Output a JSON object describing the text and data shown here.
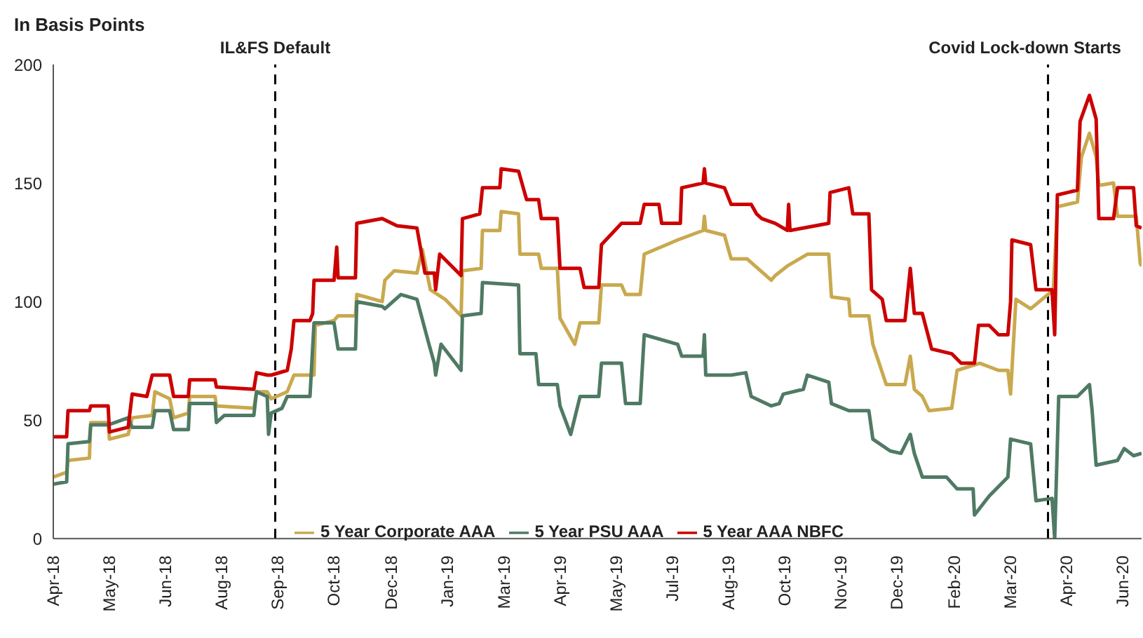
{
  "chart_data": {
    "type": "line",
    "ylabel": "In Basis Points",
    "xlim": [
      "2018-04-02",
      "2020-06-24"
    ],
    "ylim": [
      0,
      200
    ],
    "yticks": [
      0,
      50,
      100,
      150,
      200
    ],
    "xticks": [
      {
        "value": "2018-04-02",
        "label": "Apr-18"
      },
      {
        "value": "2018-05-14",
        "label": "May-18"
      },
      {
        "value": "2018-06-25",
        "label": "Jun-18"
      },
      {
        "value": "2018-08-06",
        "label": "Aug-18"
      },
      {
        "value": "2018-09-17",
        "label": "Sep-18"
      },
      {
        "value": "2018-10-29",
        "label": "Oct-18"
      },
      {
        "value": "2018-12-11",
        "label": "Dec-18"
      },
      {
        "value": "2019-01-22",
        "label": "Jan-19"
      },
      {
        "value": "2019-03-05",
        "label": "Mar-19"
      },
      {
        "value": "2019-04-16",
        "label": "Apr-19"
      },
      {
        "value": "2019-05-28",
        "label": "May-19"
      },
      {
        "value": "2019-07-09",
        "label": "Jul-19"
      },
      {
        "value": "2019-08-20",
        "label": "Aug-19"
      },
      {
        "value": "2019-10-01",
        "label": "Oct-19"
      },
      {
        "value": "2019-11-12",
        "label": "Nov-19"
      },
      {
        "value": "2019-12-24",
        "label": "Dec-19"
      },
      {
        "value": "2020-02-05",
        "label": "Feb-20"
      },
      {
        "value": "2020-03-18",
        "label": "Mar-20"
      },
      {
        "value": "2020-04-29",
        "label": "Apr-20"
      },
      {
        "value": "2020-06-10",
        "label": "Jun-20"
      }
    ],
    "legend": "bottom",
    "line_style": "solid",
    "ref_lines": [
      {
        "axis": "x",
        "value": "2018-09-15",
        "label": "IL&FS Default",
        "color": "#000000",
        "line_style": "dashed"
      },
      {
        "axis": "x",
        "value": "2020-04-15",
        "label": "Covid Lock-down Starts",
        "color": "#000000",
        "line_style": "dashed"
      }
    ],
    "series": [
      {
        "name": "5 Year Corporate AAA",
        "color": "#c9a94f",
        "x": [
          "2018-04-02",
          "2018-04-12",
          "2018-04-13",
          "2018-04-29",
          "2018-04-30",
          "2018-05-13",
          "2018-05-14",
          "2018-05-28",
          "2018-05-31",
          "2018-06-15",
          "2018-06-17",
          "2018-06-28",
          "2018-07-01",
          "2018-07-12",
          "2018-07-13",
          "2018-08-01",
          "2018-08-02",
          "2018-08-30",
          "2018-09-01",
          "2018-09-09",
          "2018-09-12",
          "2018-09-24",
          "2018-09-29",
          "2018-10-11",
          "2018-10-14",
          "2018-10-15",
          "2018-10-29",
          "2018-11-01",
          "2018-11-14",
          "2018-11-15",
          "2018-12-04",
          "2018-12-06",
          "2018-12-13",
          "2018-12-30",
          "2019-01-03",
          "2019-01-09",
          "2019-01-20",
          "2019-02-01",
          "2019-02-02",
          "2019-02-16",
          "2019-02-17",
          "2019-03-02",
          "2019-03-03",
          "2019-03-16",
          "2019-03-17",
          "2019-03-31",
          "2019-04-02",
          "2019-04-14",
          "2019-04-16",
          "2019-04-27",
          "2019-05-01",
          "2019-05-15",
          "2019-05-17",
          "2019-06-01",
          "2019-06-04",
          "2019-06-15",
          "2019-06-18",
          "2019-07-13",
          "2019-08-01",
          "2019-08-02",
          "2019-08-03",
          "2019-08-17",
          "2019-08-22",
          "2019-09-03",
          "2019-09-21",
          "2019-09-24",
          "2019-10-03",
          "2019-10-18",
          "2019-11-03",
          "2019-11-05",
          "2019-11-18",
          "2019-11-19",
          "2019-12-03",
          "2019-12-06",
          "2019-12-16",
          "2019-12-30",
          "2020-01-03",
          "2020-01-06",
          "2020-01-12",
          "2020-01-17",
          "2020-02-03",
          "2020-02-07",
          "2020-02-24",
          "2020-03-09",
          "2020-03-16",
          "2020-03-18",
          "2020-03-22",
          "2020-04-02",
          "2020-04-15",
          "2020-04-19",
          "2020-04-22",
          "2020-05-07",
          "2020-05-10",
          "2020-05-16",
          "2020-05-21",
          "2020-05-23",
          "2020-06-03",
          "2020-06-06",
          "2020-06-20",
          "2020-06-23",
          "2020-06-24"
        ],
        "values": [
          26,
          28,
          33,
          34,
          49,
          49,
          42,
          44,
          51,
          52,
          62,
          59,
          51,
          53,
          60,
          60,
          56,
          55,
          62,
          62,
          59,
          62,
          69,
          69,
          69,
          90,
          92,
          94,
          94,
          103,
          100,
          109,
          113,
          112,
          122,
          105,
          101,
          94,
          113,
          114,
          130,
          130,
          138,
          137,
          120,
          120,
          114,
          114,
          93,
          82,
          91,
          91,
          107,
          107,
          103,
          103,
          120,
          126,
          130,
          136,
          130,
          128,
          118,
          118,
          109,
          111,
          115,
          120,
          120,
          102,
          101,
          94,
          94,
          82,
          65,
          65,
          77,
          63,
          60,
          54,
          55,
          71,
          74,
          71,
          71,
          61,
          101,
          97,
          103,
          105,
          140,
          142,
          161,
          171,
          161,
          149,
          150,
          136,
          136,
          116,
          115
        ]
      },
      {
        "name": "5 Year PSU AAA",
        "color": "#4f7a64",
        "x": [
          "2018-04-02",
          "2018-04-12",
          "2018-04-13",
          "2018-04-29",
          "2018-04-30",
          "2018-05-13",
          "2018-05-28",
          "2018-05-31",
          "2018-06-15",
          "2018-06-17",
          "2018-06-28",
          "2018-07-01",
          "2018-07-12",
          "2018-07-13",
          "2018-08-01",
          "2018-08-02",
          "2018-08-08",
          "2018-08-30",
          "2018-09-01",
          "2018-09-09",
          "2018-09-10",
          "2018-09-12",
          "2018-09-20",
          "2018-09-24",
          "2018-10-11",
          "2018-10-14",
          "2018-10-29",
          "2018-11-01",
          "2018-11-14",
          "2018-11-15",
          "2018-12-04",
          "2018-12-06",
          "2018-12-18",
          "2018-12-30",
          "2019-01-08",
          "2019-01-12",
          "2019-01-13",
          "2019-01-17",
          "2019-02-01",
          "2019-02-02",
          "2019-02-16",
          "2019-02-17",
          "2019-03-16",
          "2019-03-17",
          "2019-03-29",
          "2019-03-31",
          "2019-04-14",
          "2019-04-16",
          "2019-04-24",
          "2019-05-01",
          "2019-05-15",
          "2019-05-17",
          "2019-06-01",
          "2019-06-04",
          "2019-06-15",
          "2019-06-18",
          "2019-07-13",
          "2019-07-16",
          "2019-08-01",
          "2019-08-02",
          "2019-08-03",
          "2019-08-22",
          "2019-09-02",
          "2019-09-06",
          "2019-09-21",
          "2019-09-27",
          "2019-09-30",
          "2019-10-15",
          "2019-10-18",
          "2019-11-03",
          "2019-11-05",
          "2019-11-18",
          "2019-12-03",
          "2019-12-06",
          "2019-12-19",
          "2019-12-27",
          "2020-01-03",
          "2020-01-06",
          "2020-01-12",
          "2020-01-30",
          "2020-02-07",
          "2020-02-19",
          "2020-02-20",
          "2020-03-02",
          "2020-03-09",
          "2020-03-16",
          "2020-03-18",
          "2020-04-02",
          "2020-04-06",
          "2020-04-18",
          "2020-04-20",
          "2020-04-23",
          "2020-05-07",
          "2020-05-16",
          "2020-05-18",
          "2020-05-21",
          "2020-06-06",
          "2020-06-11",
          "2020-06-18",
          "2020-06-24"
        ],
        "values": [
          23,
          24,
          40,
          41,
          48,
          48,
          51,
          47,
          47,
          54,
          54,
          46,
          46,
          57,
          57,
          49,
          52,
          52,
          62,
          60,
          44,
          53,
          55,
          60,
          60,
          91,
          91,
          80,
          80,
          100,
          98,
          97,
          103,
          101,
          82,
          74,
          69,
          82,
          71,
          94,
          95,
          108,
          107,
          78,
          78,
          65,
          65,
          56,
          44,
          60,
          60,
          74,
          74,
          57,
          57,
          86,
          82,
          77,
          77,
          86,
          69,
          69,
          70,
          60,
          56,
          57,
          61,
          63,
          69,
          66,
          57,
          54,
          54,
          42,
          37,
          36,
          44,
          36,
          26,
          26,
          21,
          21,
          10,
          18,
          22,
          26,
          42,
          40,
          16,
          17,
          0,
          60,
          60,
          65,
          54,
          31,
          33,
          38,
          35,
          36
        ]
      },
      {
        "name": "5 Year AAA NBFC",
        "color": "#cc0000",
        "x": [
          "2018-04-02",
          "2018-04-12",
          "2018-04-13",
          "2018-04-29",
          "2018-04-30",
          "2018-05-13",
          "2018-05-14",
          "2018-05-28",
          "2018-05-31",
          "2018-06-11",
          "2018-06-15",
          "2018-06-28",
          "2018-07-01",
          "2018-07-12",
          "2018-07-13",
          "2018-08-01",
          "2018-08-02",
          "2018-08-30",
          "2018-09-01",
          "2018-09-09",
          "2018-09-12",
          "2018-09-24",
          "2018-09-27",
          "2018-09-29",
          "2018-10-11",
          "2018-10-13",
          "2018-10-14",
          "2018-10-29",
          "2018-10-31",
          "2018-11-01",
          "2018-11-14",
          "2018-11-15",
          "2018-12-04",
          "2018-12-15",
          "2018-12-30",
          "2019-01-05",
          "2019-01-12",
          "2019-01-13",
          "2019-01-16",
          "2019-02-01",
          "2019-02-02",
          "2019-02-15",
          "2019-02-17",
          "2019-03-02",
          "2019-03-03",
          "2019-03-16",
          "2019-03-22",
          "2019-03-31",
          "2019-04-02",
          "2019-04-14",
          "2019-04-16",
          "2019-05-01",
          "2019-05-04",
          "2019-05-15",
          "2019-05-17",
          "2019-06-01",
          "2019-06-15",
          "2019-06-18",
          "2019-06-29",
          "2019-07-01",
          "2019-07-15",
          "2019-07-16",
          "2019-08-01",
          "2019-08-02",
          "2019-08-03",
          "2019-08-17",
          "2019-08-22",
          "2019-09-06",
          "2019-09-10",
          "2019-09-14",
          "2019-09-24",
          "2019-10-03",
          "2019-10-04",
          "2019-10-05",
          "2019-11-03",
          "2019-11-04",
          "2019-11-18",
          "2019-11-21",
          "2019-12-03",
          "2019-12-05",
          "2019-12-13",
          "2019-12-16",
          "2019-12-30",
          "2020-01-03",
          "2020-01-06",
          "2020-01-12",
          "2020-01-19",
          "2020-02-03",
          "2020-02-10",
          "2020-02-20",
          "2020-02-23",
          "2020-03-02",
          "2020-03-09",
          "2020-03-16",
          "2020-03-18",
          "2020-03-19",
          "2020-04-02",
          "2020-04-06",
          "2020-04-18",
          "2020-04-20",
          "2020-04-22",
          "2020-05-07",
          "2020-05-09",
          "2020-05-16",
          "2020-05-21",
          "2020-05-23",
          "2020-06-03",
          "2020-06-06",
          "2020-06-18",
          "2020-06-20",
          "2020-06-24"
        ],
        "values": [
          43,
          43,
          54,
          54,
          56,
          56,
          45,
          47,
          61,
          60,
          69,
          69,
          60,
          60,
          67,
          67,
          64,
          63,
          70,
          69,
          69,
          71,
          80,
          92,
          92,
          95,
          109,
          109,
          123,
          110,
          110,
          133,
          135,
          132,
          131,
          112,
          112,
          105,
          120,
          111,
          135,
          137,
          148,
          148,
          156,
          155,
          143,
          143,
          135,
          135,
          114,
          114,
          106,
          106,
          124,
          133,
          133,
          141,
          141,
          133,
          133,
          148,
          150,
          156,
          150,
          148,
          141,
          141,
          137,
          135,
          133,
          130,
          141,
          130,
          133,
          146,
          148,
          137,
          137,
          105,
          101,
          92,
          92,
          114,
          95,
          95,
          80,
          78,
          74,
          74,
          90,
          90,
          86,
          86,
          100,
          126,
          124,
          105,
          105,
          86,
          145,
          147,
          176,
          187,
          177,
          135,
          135,
          148,
          148,
          132,
          131
        ]
      }
    ]
  }
}
